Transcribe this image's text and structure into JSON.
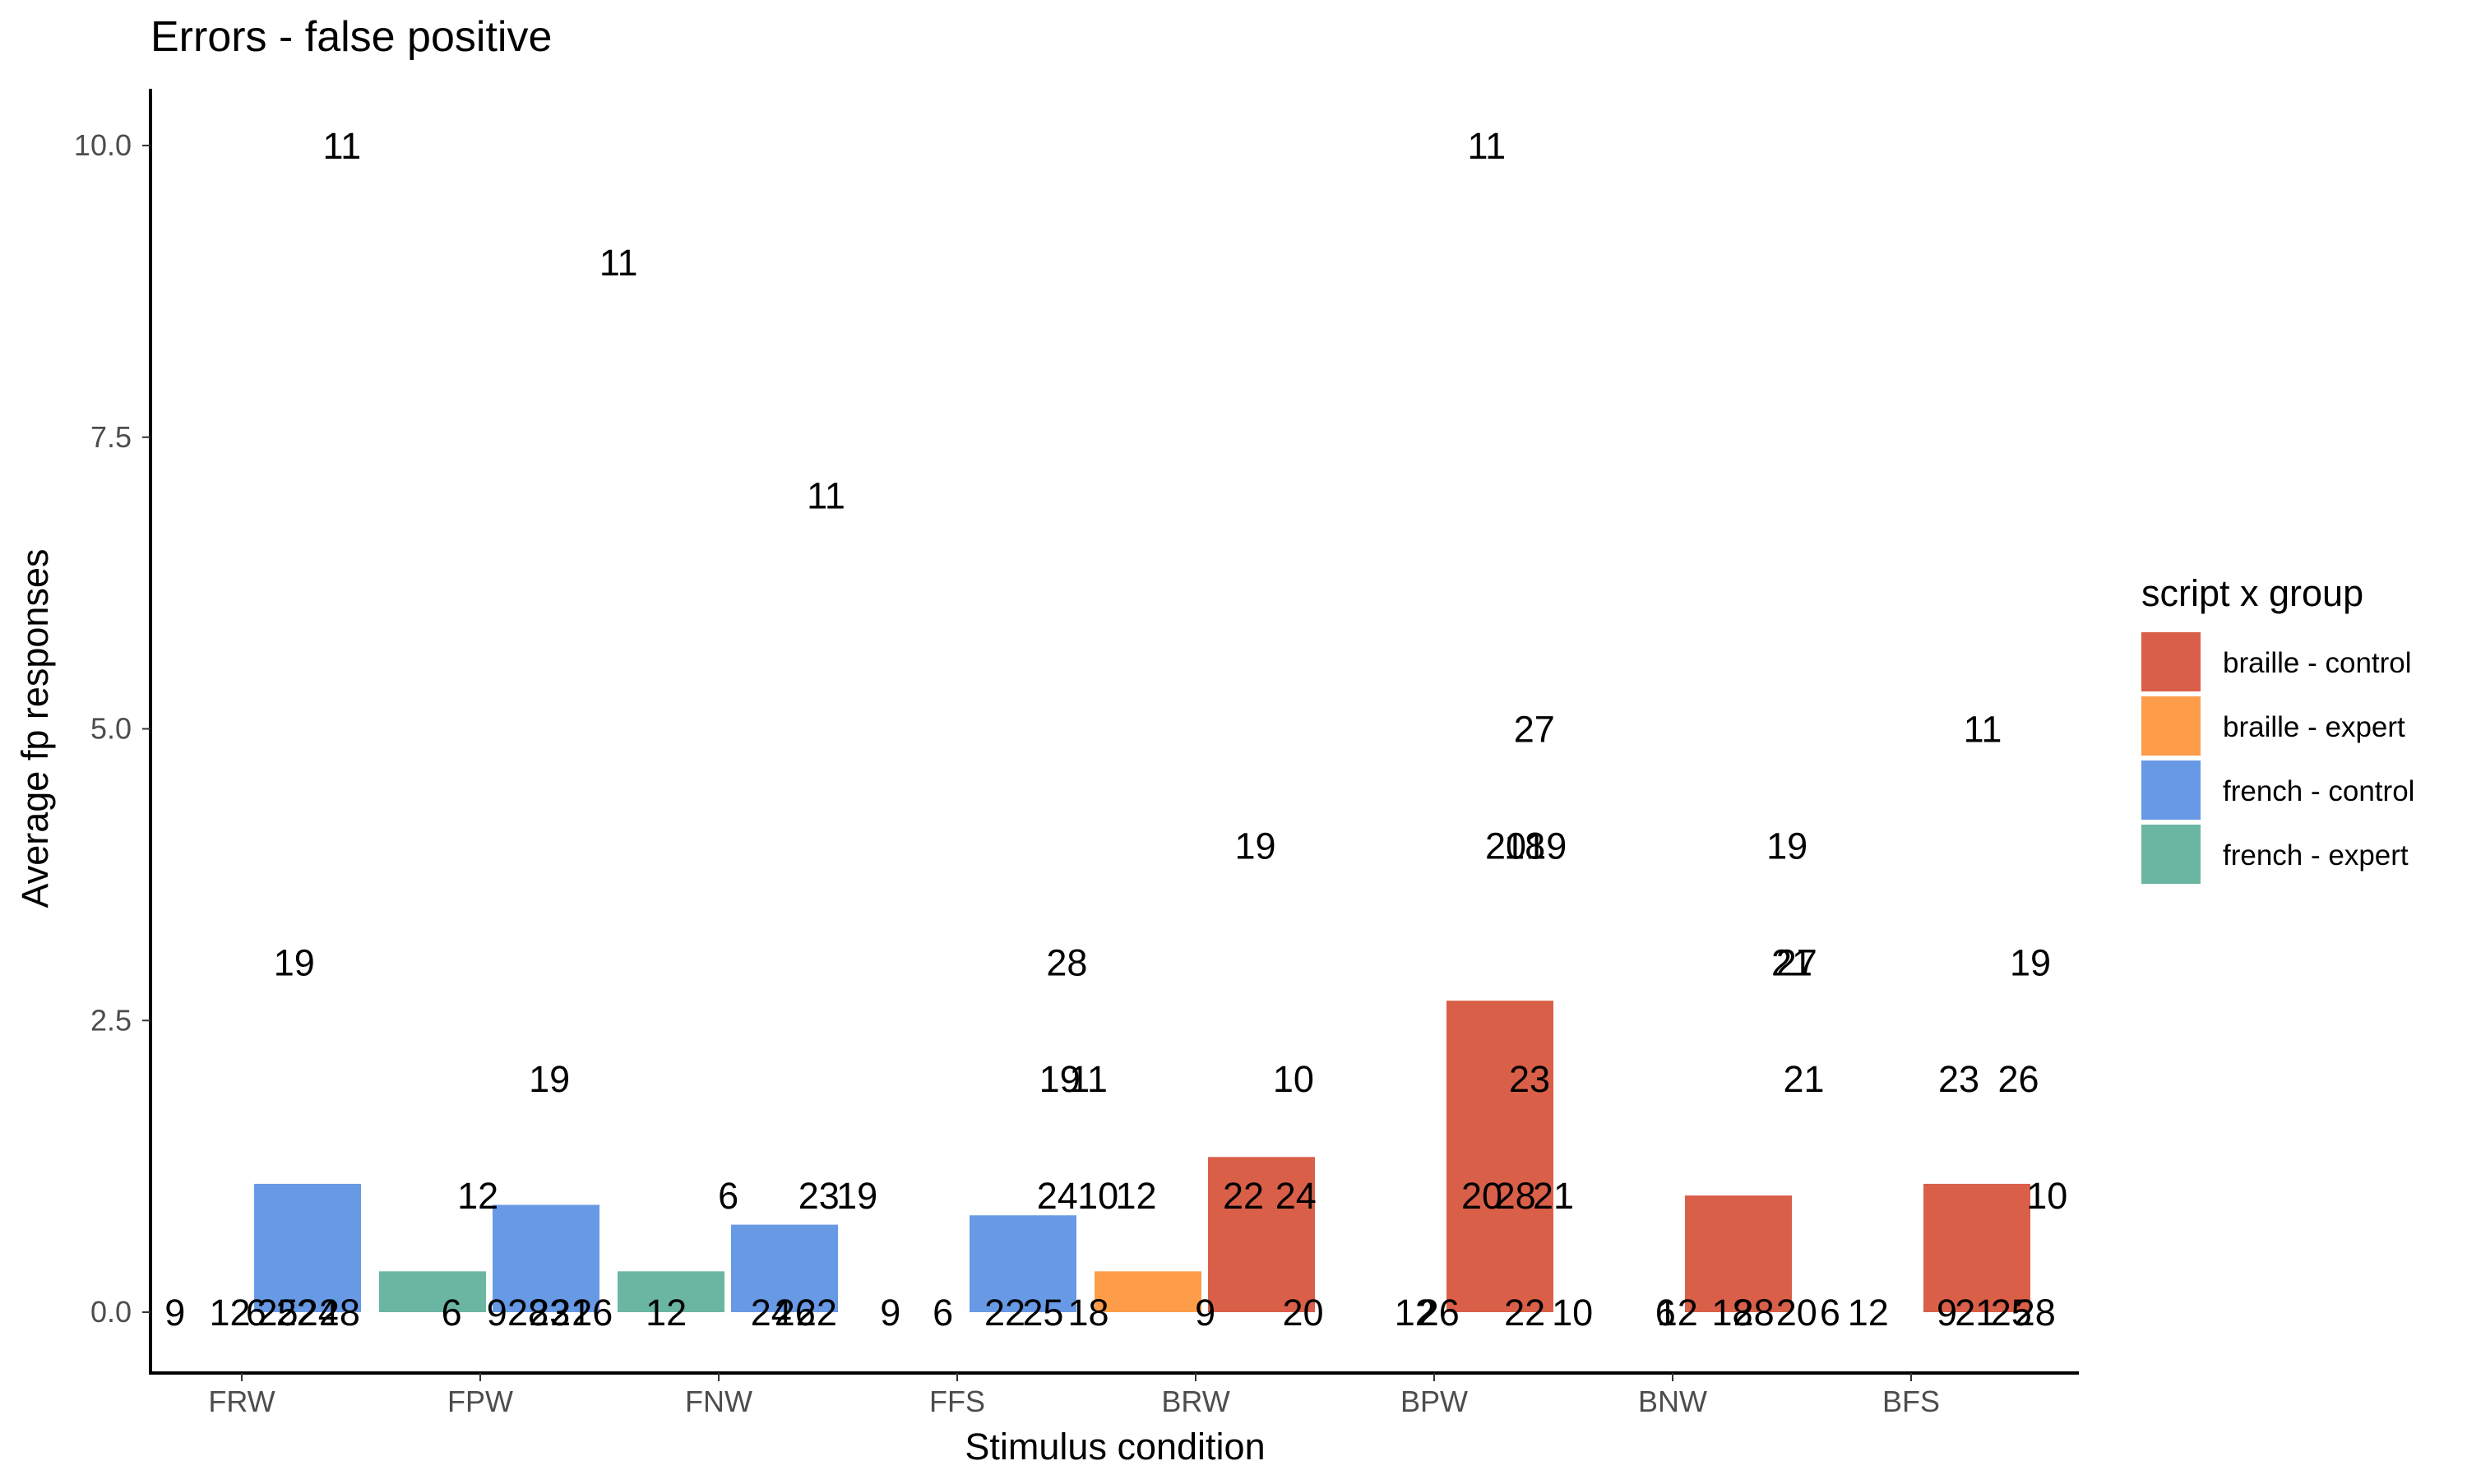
{
  "chart_data": {
    "type": "bar",
    "title": "Errors - false positive",
    "xlabel": "Stimulus condition",
    "ylabel": "Average fp responses",
    "ylim": [
      -0.5,
      10.5
    ],
    "yticks": [
      "0.0",
      "2.5",
      "5.0",
      "7.5",
      "10.0"
    ],
    "ytick_values": [
      0,
      2.5,
      5,
      7.5,
      10
    ],
    "grid": false,
    "legend_position": "right",
    "categories": [
      "FRW",
      "FPW",
      "FNW",
      "FFS",
      "BRW",
      "BPW",
      "BNW",
      "BFS"
    ],
    "legend": {
      "title": "script x group",
      "entries": [
        {
          "name": "braille - control",
          "color": "#da5f48"
        },
        {
          "name": "braille - expert",
          "color": "#fd9d4a"
        },
        {
          "name": "french - control",
          "color": "#6799e5"
        },
        {
          "name": "french - expert",
          "color": "#6bb6a2"
        }
      ]
    },
    "bars": [
      {
        "category": "FRW",
        "group": "french - expert",
        "value": 0.0
      },
      {
        "category": "FRW",
        "group": "french - control",
        "value": 1.1
      },
      {
        "category": "FPW",
        "group": "french - expert",
        "value": 0.35
      },
      {
        "category": "FPW",
        "group": "french - control",
        "value": 0.92
      },
      {
        "category": "FNW",
        "group": "french - expert",
        "value": 0.35
      },
      {
        "category": "FNW",
        "group": "french - control",
        "value": 0.75
      },
      {
        "category": "FFS",
        "group": "french - expert",
        "value": 0.0
      },
      {
        "category": "FFS",
        "group": "french - control",
        "value": 0.83
      },
      {
        "category": "BRW",
        "group": "braille - expert",
        "value": 0.35
      },
      {
        "category": "BRW",
        "group": "braille - control",
        "value": 1.33
      },
      {
        "category": "BPW",
        "group": "braille - expert",
        "value": 0.0
      },
      {
        "category": "BPW",
        "group": "braille - control",
        "value": 2.67
      },
      {
        "category": "BNW",
        "group": "braille - expert",
        "value": 0.0
      },
      {
        "category": "BNW",
        "group": "braille - control",
        "value": 1.0
      },
      {
        "category": "BFS",
        "group": "braille - expert",
        "value": 0.0
      },
      {
        "category": "BFS",
        "group": "braille - control",
        "value": 1.1
      }
    ],
    "point_labels": [
      {
        "text": "9",
        "x": 0.72,
        "y": 0
      },
      {
        "text": "12",
        "x": 0.95,
        "y": 0
      },
      {
        "text": "6",
        "x": 1.06,
        "y": 0
      },
      {
        "text": "25",
        "x": 1.15,
        "y": 0
      },
      {
        "text": "22",
        "x": 1.23,
        "y": 0
      },
      {
        "text": "24",
        "x": 1.32,
        "y": 0
      },
      {
        "text": "28",
        "x": 1.41,
        "y": 0
      },
      {
        "text": "19",
        "x": 1.22,
        "y": 3
      },
      {
        "text": "11",
        "x": 1.42,
        "y": 10
      },
      {
        "text": "6",
        "x": 1.88,
        "y": 0
      },
      {
        "text": "9",
        "x": 2.07,
        "y": 0
      },
      {
        "text": "12",
        "x": 1.99,
        "y": 1
      },
      {
        "text": "28",
        "x": 2.2,
        "y": 0
      },
      {
        "text": "23",
        "x": 2.29,
        "y": 0
      },
      {
        "text": "21",
        "x": 2.38,
        "y": 0
      },
      {
        "text": "26",
        "x": 2.47,
        "y": 0
      },
      {
        "text": "19",
        "x": 2.29,
        "y": 2
      },
      {
        "text": "11",
        "x": 2.58,
        "y": 9
      },
      {
        "text": "12",
        "x": 2.78,
        "y": 0
      },
      {
        "text": "6",
        "x": 3.04,
        "y": 1
      },
      {
        "text": "24",
        "x": 3.22,
        "y": 0
      },
      {
        "text": "26",
        "x": 3.32,
        "y": 0
      },
      {
        "text": "22",
        "x": 3.41,
        "y": 0
      },
      {
        "text": "23",
        "x": 3.42,
        "y": 1
      },
      {
        "text": "19",
        "x": 3.58,
        "y": 1
      },
      {
        "text": "11",
        "x": 3.45,
        "y": 7
      },
      {
        "text": "9",
        "x": 3.72,
        "y": 0
      },
      {
        "text": "6",
        "x": 3.94,
        "y": 0
      },
      {
        "text": "22",
        "x": 4.2,
        "y": 0
      },
      {
        "text": "25",
        "x": 4.36,
        "y": 0
      },
      {
        "text": "18",
        "x": 4.55,
        "y": 0
      },
      {
        "text": "24",
        "x": 4.42,
        "y": 1
      },
      {
        "text": "10",
        "x": 4.59,
        "y": 1
      },
      {
        "text": "12",
        "x": 4.75,
        "y": 1
      },
      {
        "text": "19",
        "x": 4.43,
        "y": 2
      },
      {
        "text": "11",
        "x": 4.55,
        "y": 2
      },
      {
        "text": "28",
        "x": 4.46,
        "y": 3
      },
      {
        "text": "9",
        "x": 5.04,
        "y": 0
      },
      {
        "text": "20",
        "x": 5.45,
        "y": 0
      },
      {
        "text": "22",
        "x": 5.2,
        "y": 1
      },
      {
        "text": "24",
        "x": 5.42,
        "y": 1
      },
      {
        "text": "10",
        "x": 5.41,
        "y": 2
      },
      {
        "text": "19",
        "x": 5.25,
        "y": 4
      },
      {
        "text": "12",
        "x": 5.92,
        "y": 0
      },
      {
        "text": "26",
        "x": 6.02,
        "y": 0
      },
      {
        "text": "20",
        "x": 6.2,
        "y": 1
      },
      {
        "text": "28",
        "x": 6.34,
        "y": 1
      },
      {
        "text": "21",
        "x": 6.5,
        "y": 1
      },
      {
        "text": "22",
        "x": 6.38,
        "y": 0
      },
      {
        "text": "10",
        "x": 6.58,
        "y": 0
      },
      {
        "text": "23",
        "x": 6.4,
        "y": 2
      },
      {
        "text": "20",
        "x": 6.3,
        "y": 4
      },
      {
        "text": "18",
        "x": 6.38,
        "y": 4
      },
      {
        "text": "19",
        "x": 6.47,
        "y": 4
      },
      {
        "text": "27",
        "x": 6.42,
        "y": 5
      },
      {
        "text": "11",
        "x": 6.22,
        "y": 10
      },
      {
        "text": "6",
        "x": 6.97,
        "y": 0
      },
      {
        "text": "12",
        "x": 7.02,
        "y": 0
      },
      {
        "text": "18",
        "x": 7.25,
        "y": 0
      },
      {
        "text": "28",
        "x": 7.34,
        "y": 0
      },
      {
        "text": "20",
        "x": 7.52,
        "y": 0
      },
      {
        "text": "6",
        "x": 7.66,
        "y": 0
      },
      {
        "text": "12",
        "x": 7.82,
        "y": 0
      },
      {
        "text": "21",
        "x": 7.55,
        "y": 2
      },
      {
        "text": "21",
        "x": 7.5,
        "y": 3
      },
      {
        "text": "27",
        "x": 7.52,
        "y": 3
      },
      {
        "text": "19",
        "x": 7.48,
        "y": 4
      },
      {
        "text": "9",
        "x": 8.15,
        "y": 0
      },
      {
        "text": "21",
        "x": 8.27,
        "y": 0
      },
      {
        "text": "25",
        "x": 8.42,
        "y": 0
      },
      {
        "text": "28",
        "x": 8.52,
        "y": 0
      },
      {
        "text": "23",
        "x": 8.2,
        "y": 2
      },
      {
        "text": "26",
        "x": 8.45,
        "y": 2
      },
      {
        "text": "10",
        "x": 8.57,
        "y": 1
      },
      {
        "text": "19",
        "x": 8.5,
        "y": 3
      },
      {
        "text": "11",
        "x": 8.3,
        "y": 5
      }
    ]
  }
}
